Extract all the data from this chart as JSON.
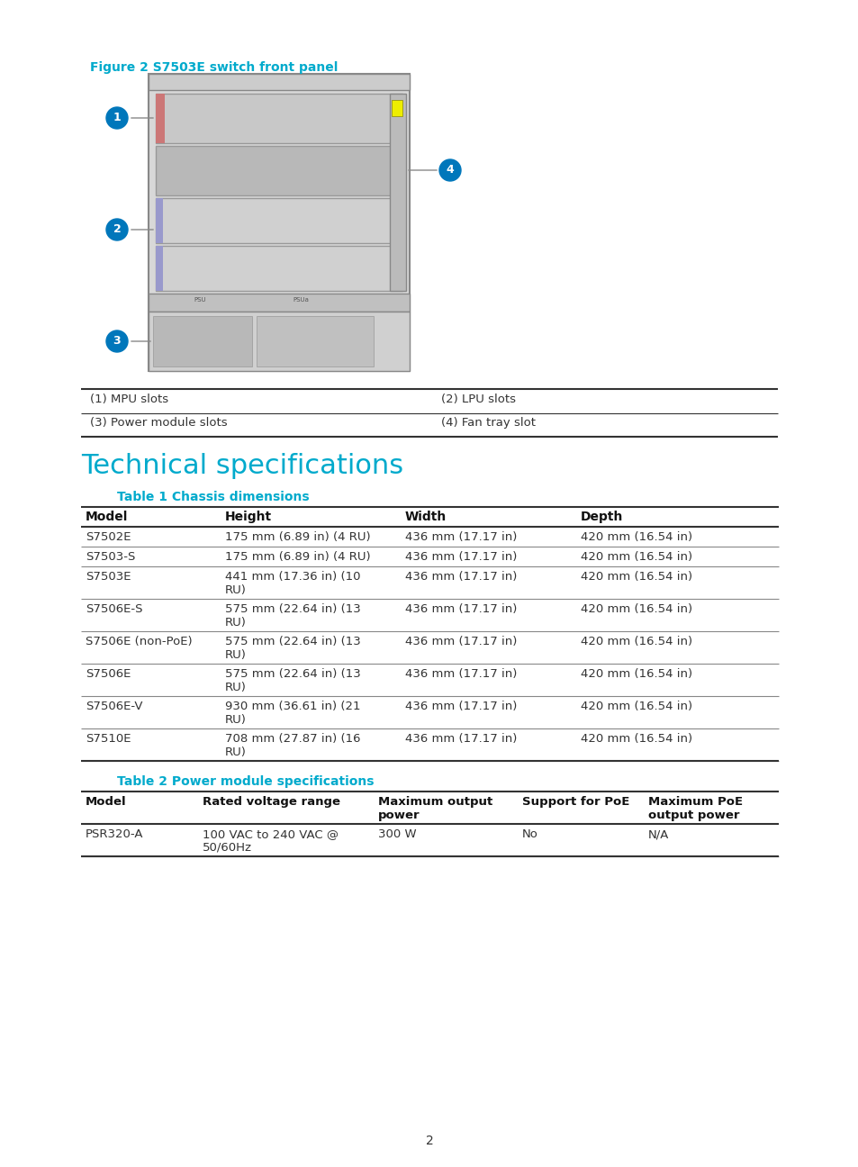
{
  "page_bg": "#ffffff",
  "figure_caption": "Figure 2 S7503E switch front panel",
  "figure_caption_color": "#00aacc",
  "legend_items": [
    [
      "(1) MPU slots",
      "(2) LPU slots"
    ],
    [
      "(3) Power module slots",
      "(4) Fan tray slot"
    ]
  ],
  "section_title": "Technical specifications",
  "section_title_color": "#00aacc",
  "table1_title": "Table 1 Chassis dimensions",
  "table1_title_color": "#00aacc",
  "table1_headers": [
    "Model",
    "Height",
    "Width",
    "Depth"
  ],
  "table1_rows": [
    [
      "S7502E",
      "175 mm (6.89 in) (4 RU)",
      "436 mm (17.17 in)",
      "420 mm (16.54 in)"
    ],
    [
      "S7503-S",
      "175 mm (6.89 in) (4 RU)",
      "436 mm (17.17 in)",
      "420 mm (16.54 in)"
    ],
    [
      "S7503E",
      "441 mm (17.36 in) (10\nRU)",
      "436 mm (17.17 in)",
      "420 mm (16.54 in)"
    ],
    [
      "S7506E-S",
      "575 mm (22.64 in) (13\nRU)",
      "436 mm (17.17 in)",
      "420 mm (16.54 in)"
    ],
    [
      "S7506E (non-PoE)",
      "575 mm (22.64 in) (13\nRU)",
      "436 mm (17.17 in)",
      "420 mm (16.54 in)"
    ],
    [
      "S7506E",
      "575 mm (22.64 in) (13\nRU)",
      "436 mm (17.17 in)",
      "420 mm (16.54 in)"
    ],
    [
      "S7506E-V",
      "930 mm (36.61 in) (21\nRU)",
      "436 mm (17.17 in)",
      "420 mm (16.54 in)"
    ],
    [
      "S7510E",
      "708 mm (27.87 in) (16\nRU)",
      "436 mm (17.17 in)",
      "420 mm (16.54 in)"
    ]
  ],
  "table2_title": "Table 2 Power module specifications",
  "table2_title_color": "#00aacc",
  "table2_headers": [
    "Model",
    "Rated voltage range",
    "Maximum output\npower",
    "Support for PoE",
    "Maximum PoE\noutput power"
  ],
  "table2_rows": [
    [
      "PSR320-A",
      "100 VAC to 240 VAC @\n50/60Hz",
      "300 W",
      "No",
      "N/A"
    ]
  ],
  "page_number": "2",
  "text_color": "#333333",
  "header_bg": "#ffffff",
  "row_alt_bg": "#ffffff",
  "border_color": "#555555",
  "header_text_color": "#111111"
}
